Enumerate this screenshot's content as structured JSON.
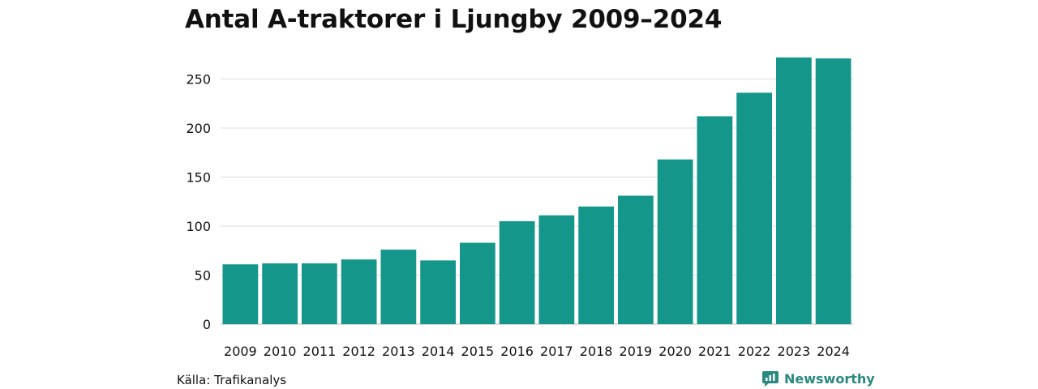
{
  "chart_data": {
    "type": "bar",
    "title": "Antal A-traktorer i Ljungby 2009–2024",
    "xlabel": "",
    "ylabel": "",
    "categories": [
      "2009",
      "2010",
      "2011",
      "2012",
      "2013",
      "2014",
      "2015",
      "2016",
      "2017",
      "2018",
      "2019",
      "2020",
      "2021",
      "2022",
      "2023",
      "2024"
    ],
    "values": [
      61,
      62,
      62,
      66,
      76,
      65,
      83,
      105,
      111,
      120,
      131,
      168,
      212,
      236,
      272,
      271
    ],
    "yticks": [
      "0",
      "50",
      "100",
      "150",
      "200",
      "250"
    ],
    "ylim": [
      0,
      280
    ],
    "grid": true,
    "bar_color": "#14968a"
  },
  "footer": {
    "source": "Källa: Trafikanalys",
    "brand": "Newsworthy",
    "brand_color": "#2a8a80"
  }
}
